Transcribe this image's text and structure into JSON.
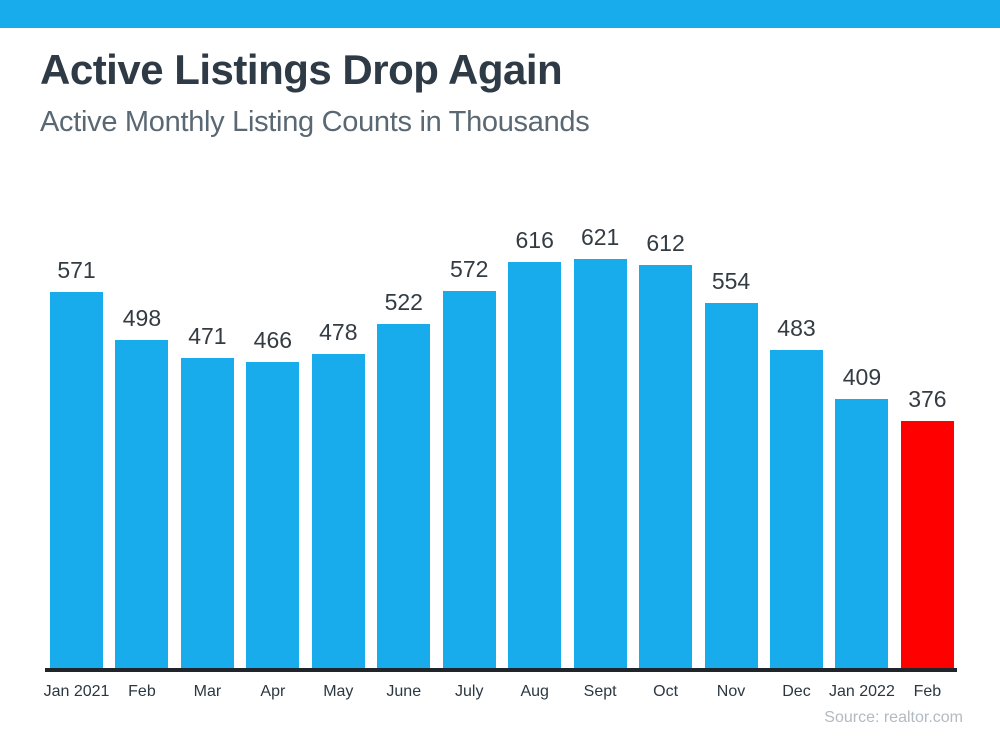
{
  "top_banner": {
    "color": "#18ACEC"
  },
  "header": {
    "title": "Active Listings Drop Again",
    "subtitle": "Active Monthly Listing Counts in Thousands"
  },
  "chart_data": {
    "type": "bar",
    "title": "Active Listings Drop Again",
    "subtitle": "Active Monthly Listing Counts in Thousands",
    "categories": [
      "Jan 2021",
      "Feb",
      "Mar",
      "Apr",
      "May",
      "June",
      "July",
      "Aug",
      "Sept",
      "Oct",
      "Nov",
      "Dec",
      "Jan 2022",
      "Feb"
    ],
    "values": [
      571,
      498,
      471,
      466,
      478,
      522,
      572,
      616,
      621,
      612,
      554,
      483,
      409,
      376
    ],
    "bar_color_default": "#18ACEC",
    "bar_color_highlight": "#FF0000",
    "highlight_index": 13,
    "value_labels_shown": true,
    "xlabel": "",
    "ylabel": "",
    "ylim": [
      0,
      650
    ],
    "grid": false,
    "legend": false
  },
  "footer": {
    "source_label": "Source: realtor.com"
  }
}
